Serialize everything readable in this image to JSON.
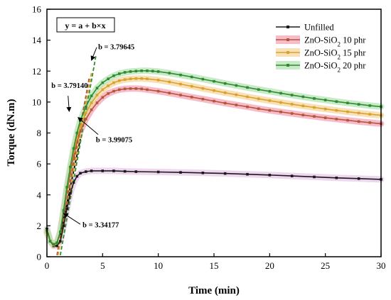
{
  "chart_data": {
    "type": "line",
    "title": "",
    "xlabel": "Time (min)",
    "ylabel": "Torque (dN.m)",
    "xlim": [
      0,
      30
    ],
    "ylim": [
      0,
      16
    ],
    "xticks": [
      0,
      5,
      10,
      15,
      20,
      25,
      30
    ],
    "yticks": [
      0,
      2,
      4,
      6,
      8,
      10,
      12,
      14,
      16
    ],
    "grid": false,
    "legend_position": "top-right",
    "equation_box": "y = a + b×x",
    "series": [
      {
        "name": "Unfilled",
        "color": "#1a1a1a",
        "band_color": "#e8c8e8",
        "points": [
          [
            0,
            1.8
          ],
          [
            0.3,
            1.0
          ],
          [
            0.6,
            0.7
          ],
          [
            0.9,
            0.7
          ],
          [
            1.2,
            1.0
          ],
          [
            1.5,
            2.0
          ],
          [
            1.8,
            3.1
          ],
          [
            2.1,
            4.1
          ],
          [
            2.4,
            4.8
          ],
          [
            2.7,
            5.2
          ],
          [
            3.0,
            5.4
          ],
          [
            3.5,
            5.5
          ],
          [
            4,
            5.55
          ],
          [
            5,
            5.55
          ],
          [
            6,
            5.55
          ],
          [
            7,
            5.52
          ],
          [
            8,
            5.5
          ],
          [
            10,
            5.48
          ],
          [
            12,
            5.45
          ],
          [
            14,
            5.42
          ],
          [
            16,
            5.38
          ],
          [
            18,
            5.33
          ],
          [
            20,
            5.28
          ],
          [
            22,
            5.22
          ],
          [
            24,
            5.16
          ],
          [
            26,
            5.1
          ],
          [
            28,
            5.05
          ],
          [
            30,
            5.0
          ]
        ]
      },
      {
        "name": "ZnO-SiO2 10 phr",
        "label_main": "ZnO-SiO",
        "label_sub": "2",
        "label_tail": " 10 phr",
        "color": "#b5553a",
        "band_color": "#f4a6b8",
        "points": [
          [
            0,
            1.6
          ],
          [
            0.3,
            1.0
          ],
          [
            0.6,
            0.8
          ],
          [
            0.9,
            0.9
          ],
          [
            1.2,
            1.6
          ],
          [
            1.5,
            2.9
          ],
          [
            1.8,
            4.2
          ],
          [
            2.1,
            5.4
          ],
          [
            2.4,
            6.5
          ],
          [
            2.7,
            7.4
          ],
          [
            3.0,
            8.1
          ],
          [
            3.5,
            8.9
          ],
          [
            4,
            9.5
          ],
          [
            4.5,
            9.95
          ],
          [
            5,
            10.3
          ],
          [
            5.5,
            10.55
          ],
          [
            6,
            10.7
          ],
          [
            6.5,
            10.8
          ],
          [
            7,
            10.85
          ],
          [
            7.5,
            10.87
          ],
          [
            8,
            10.87
          ],
          [
            8.5,
            10.85
          ],
          [
            9,
            10.8
          ],
          [
            10,
            10.7
          ],
          [
            11,
            10.58
          ],
          [
            12,
            10.45
          ],
          [
            13,
            10.32
          ],
          [
            14,
            10.19
          ],
          [
            15,
            10.06
          ],
          [
            16,
            9.93
          ],
          [
            17,
            9.81
          ],
          [
            18,
            9.69
          ],
          [
            19,
            9.57
          ],
          [
            20,
            9.46
          ],
          [
            21,
            9.36
          ],
          [
            22,
            9.26
          ],
          [
            23,
            9.16
          ],
          [
            24,
            9.07
          ],
          [
            25,
            8.98
          ],
          [
            26,
            8.9
          ],
          [
            27,
            8.82
          ],
          [
            28,
            8.74
          ],
          [
            29,
            8.67
          ],
          [
            30,
            8.6
          ]
        ]
      },
      {
        "name": "ZnO-SiO2 15 phr",
        "label_main": "ZnO-SiO",
        "label_sub": "2",
        "label_tail": " 15 phr",
        "color": "#d9a22a",
        "band_color": "#f6d7a0",
        "points": [
          [
            0,
            1.6
          ],
          [
            0.3,
            1.0
          ],
          [
            0.6,
            0.75
          ],
          [
            0.9,
            0.9
          ],
          [
            1.2,
            1.6
          ],
          [
            1.5,
            3.0
          ],
          [
            1.8,
            4.4
          ],
          [
            2.1,
            5.7
          ],
          [
            2.4,
            6.8
          ],
          [
            2.7,
            7.7
          ],
          [
            3.0,
            8.4
          ],
          [
            3.5,
            9.3
          ],
          [
            4,
            9.95
          ],
          [
            4.5,
            10.45
          ],
          [
            5,
            10.8
          ],
          [
            5.5,
            11.05
          ],
          [
            6,
            11.25
          ],
          [
            6.5,
            11.38
          ],
          [
            7,
            11.45
          ],
          [
            7.5,
            11.5
          ],
          [
            8,
            11.52
          ],
          [
            8.5,
            11.52
          ],
          [
            9,
            11.5
          ],
          [
            10,
            11.42
          ],
          [
            11,
            11.3
          ],
          [
            12,
            11.16
          ],
          [
            13,
            11.02
          ],
          [
            14,
            10.88
          ],
          [
            15,
            10.74
          ],
          [
            16,
            10.6
          ],
          [
            17,
            10.47
          ],
          [
            18,
            10.34
          ],
          [
            19,
            10.21
          ],
          [
            20,
            10.09
          ],
          [
            21,
            9.97
          ],
          [
            22,
            9.86
          ],
          [
            23,
            9.75
          ],
          [
            24,
            9.65
          ],
          [
            25,
            9.55
          ],
          [
            26,
            9.46
          ],
          [
            27,
            9.37
          ],
          [
            28,
            9.29
          ],
          [
            29,
            9.21
          ],
          [
            30,
            9.14
          ]
        ]
      },
      {
        "name": "ZnO-SiO2 20 phr",
        "label_main": "ZnO-SiO",
        "label_sub": "2",
        "label_tail": " 20 phr",
        "color": "#2e8b2e",
        "band_color": "#b6e3b6",
        "points": [
          [
            0,
            1.7
          ],
          [
            0.3,
            1.0
          ],
          [
            0.6,
            0.8
          ],
          [
            0.9,
            0.9
          ],
          [
            1.2,
            1.6
          ],
          [
            1.5,
            3.0
          ],
          [
            1.8,
            4.5
          ],
          [
            2.1,
            5.8
          ],
          [
            2.4,
            7.0
          ],
          [
            2.7,
            8.0
          ],
          [
            3.0,
            8.8
          ],
          [
            3.5,
            9.7
          ],
          [
            4,
            10.4
          ],
          [
            4.5,
            10.9
          ],
          [
            5,
            11.25
          ],
          [
            5.5,
            11.5
          ],
          [
            6,
            11.7
          ],
          [
            6.5,
            11.83
          ],
          [
            7,
            11.92
          ],
          [
            7.5,
            11.97
          ],
          [
            8,
            12.0
          ],
          [
            8.5,
            12.02
          ],
          [
            9,
            12.02
          ],
          [
            9.5,
            12.0
          ],
          [
            10,
            11.97
          ],
          [
            11,
            11.87
          ],
          [
            12,
            11.75
          ],
          [
            13,
            11.62
          ],
          [
            14,
            11.48
          ],
          [
            15,
            11.34
          ],
          [
            16,
            11.2
          ],
          [
            17,
            11.07
          ],
          [
            18,
            10.94
          ],
          [
            19,
            10.81
          ],
          [
            20,
            10.69
          ],
          [
            21,
            10.57
          ],
          [
            22,
            10.45
          ],
          [
            23,
            10.34
          ],
          [
            24,
            10.23
          ],
          [
            25,
            10.13
          ],
          [
            26,
            10.03
          ],
          [
            27,
            9.94
          ],
          [
            28,
            9.85
          ],
          [
            29,
            9.77
          ],
          [
            30,
            9.7
          ]
        ]
      }
    ],
    "fit_lines": [
      {
        "color": "#000000",
        "points": [
          [
            1.2,
            1.4
          ],
          [
            3.0,
            7.6
          ]
        ]
      },
      {
        "color": "#b5553a",
        "points": [
          [
            0.9,
            0.1
          ],
          [
            3.8,
            11.6
          ]
        ]
      },
      {
        "color": "#d9a22a",
        "points": [
          [
            1.0,
            0.1
          ],
          [
            4.0,
            11.9
          ]
        ]
      },
      {
        "color": "#2e8b2e",
        "points": [
          [
            1.2,
            0.1
          ],
          [
            4.4,
            13.0
          ]
        ]
      }
    ],
    "annotations": [
      {
        "text": "b = 3.79645",
        "x": 4.6,
        "y": 13.4,
        "arrow_to": [
          4.0,
          12.7
        ],
        "anchor": "start"
      },
      {
        "text": "b = 3.79140",
        "x": 0.4,
        "y": 10.9,
        "arrow_to": [
          2.0,
          9.4
        ],
        "anchor": "start",
        "arrow_from": [
          1.9,
          10.4
        ]
      },
      {
        "text": "b = 3.99075",
        "x": 4.4,
        "y": 7.4,
        "arrow_to": [
          2.8,
          9.0
        ],
        "anchor": "start",
        "arrow_from": [
          4.6,
          7.9
        ]
      },
      {
        "text": "b = 3.34177",
        "x": 3.2,
        "y": 1.9,
        "arrow_to": [
          1.5,
          2.8
        ],
        "anchor": "start",
        "arrow_from": [
          3.0,
          2.1
        ]
      }
    ]
  }
}
